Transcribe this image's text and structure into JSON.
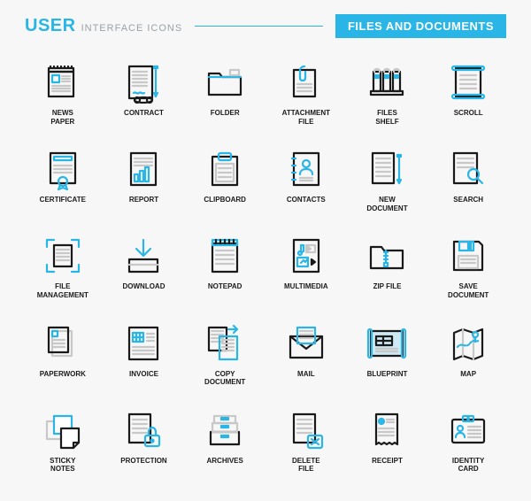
{
  "header": {
    "title_strong": "USER",
    "title_light": "INTERFACE ICONS",
    "badge": "FILES AND DOCUMENTS"
  },
  "palette": {
    "cyan": "#29b6e6",
    "black": "#1a1a1a",
    "gray": "#c8c8c8",
    "bg": "#f7f7f7"
  },
  "grid": {
    "cols": 6,
    "rows": 5
  },
  "icons": [
    {
      "id": "newspaper-icon",
      "label": "NEWS\nPAPER"
    },
    {
      "id": "contract-icon",
      "label": "CONTRACT"
    },
    {
      "id": "folder-icon",
      "label": "FOLDER"
    },
    {
      "id": "attachment-icon",
      "label": "ATTACHMENT\nFILE"
    },
    {
      "id": "files-shelf-icon",
      "label": "FILES\nSHELF"
    },
    {
      "id": "scroll-icon",
      "label": "SCROLL"
    },
    {
      "id": "certificate-icon",
      "label": "CERTIFICATE"
    },
    {
      "id": "report-icon",
      "label": "REPORT"
    },
    {
      "id": "clipboard-icon",
      "label": "CLIPBOARD"
    },
    {
      "id": "contacts-icon",
      "label": "CONTACTS"
    },
    {
      "id": "new-document-icon",
      "label": "NEW\nDOCUMENT"
    },
    {
      "id": "search-icon",
      "label": "SEARCH"
    },
    {
      "id": "file-management-icon",
      "label": "FILE\nMANAGEMENT"
    },
    {
      "id": "download-icon",
      "label": "DOWNLOAD"
    },
    {
      "id": "notepad-icon",
      "label": "NOTEPAD"
    },
    {
      "id": "multimedia-icon",
      "label": "MULTIMEDIA"
    },
    {
      "id": "zip-file-icon",
      "label": "ZIP FILE"
    },
    {
      "id": "save-document-icon",
      "label": "SAVE\nDOCUMENT"
    },
    {
      "id": "paperwork-icon",
      "label": "PAPERWORK"
    },
    {
      "id": "invoice-icon",
      "label": "INVOICE"
    },
    {
      "id": "copy-document-icon",
      "label": "COPY\nDOCUMENT"
    },
    {
      "id": "mail-icon",
      "label": "MAIL"
    },
    {
      "id": "blueprint-icon",
      "label": "BLUEPRINT"
    },
    {
      "id": "map-icon",
      "label": "MAP"
    },
    {
      "id": "sticky-notes-icon",
      "label": "STICKY\nNOTES"
    },
    {
      "id": "protection-icon",
      "label": "PROTECTION"
    },
    {
      "id": "archives-icon",
      "label": "ARCHIVES"
    },
    {
      "id": "delete-file-icon",
      "label": "DELETE\nFILE"
    },
    {
      "id": "receipt-icon",
      "label": "RECEIPT"
    },
    {
      "id": "identity-card-icon",
      "label": "IDENTITY\nCARD"
    }
  ]
}
